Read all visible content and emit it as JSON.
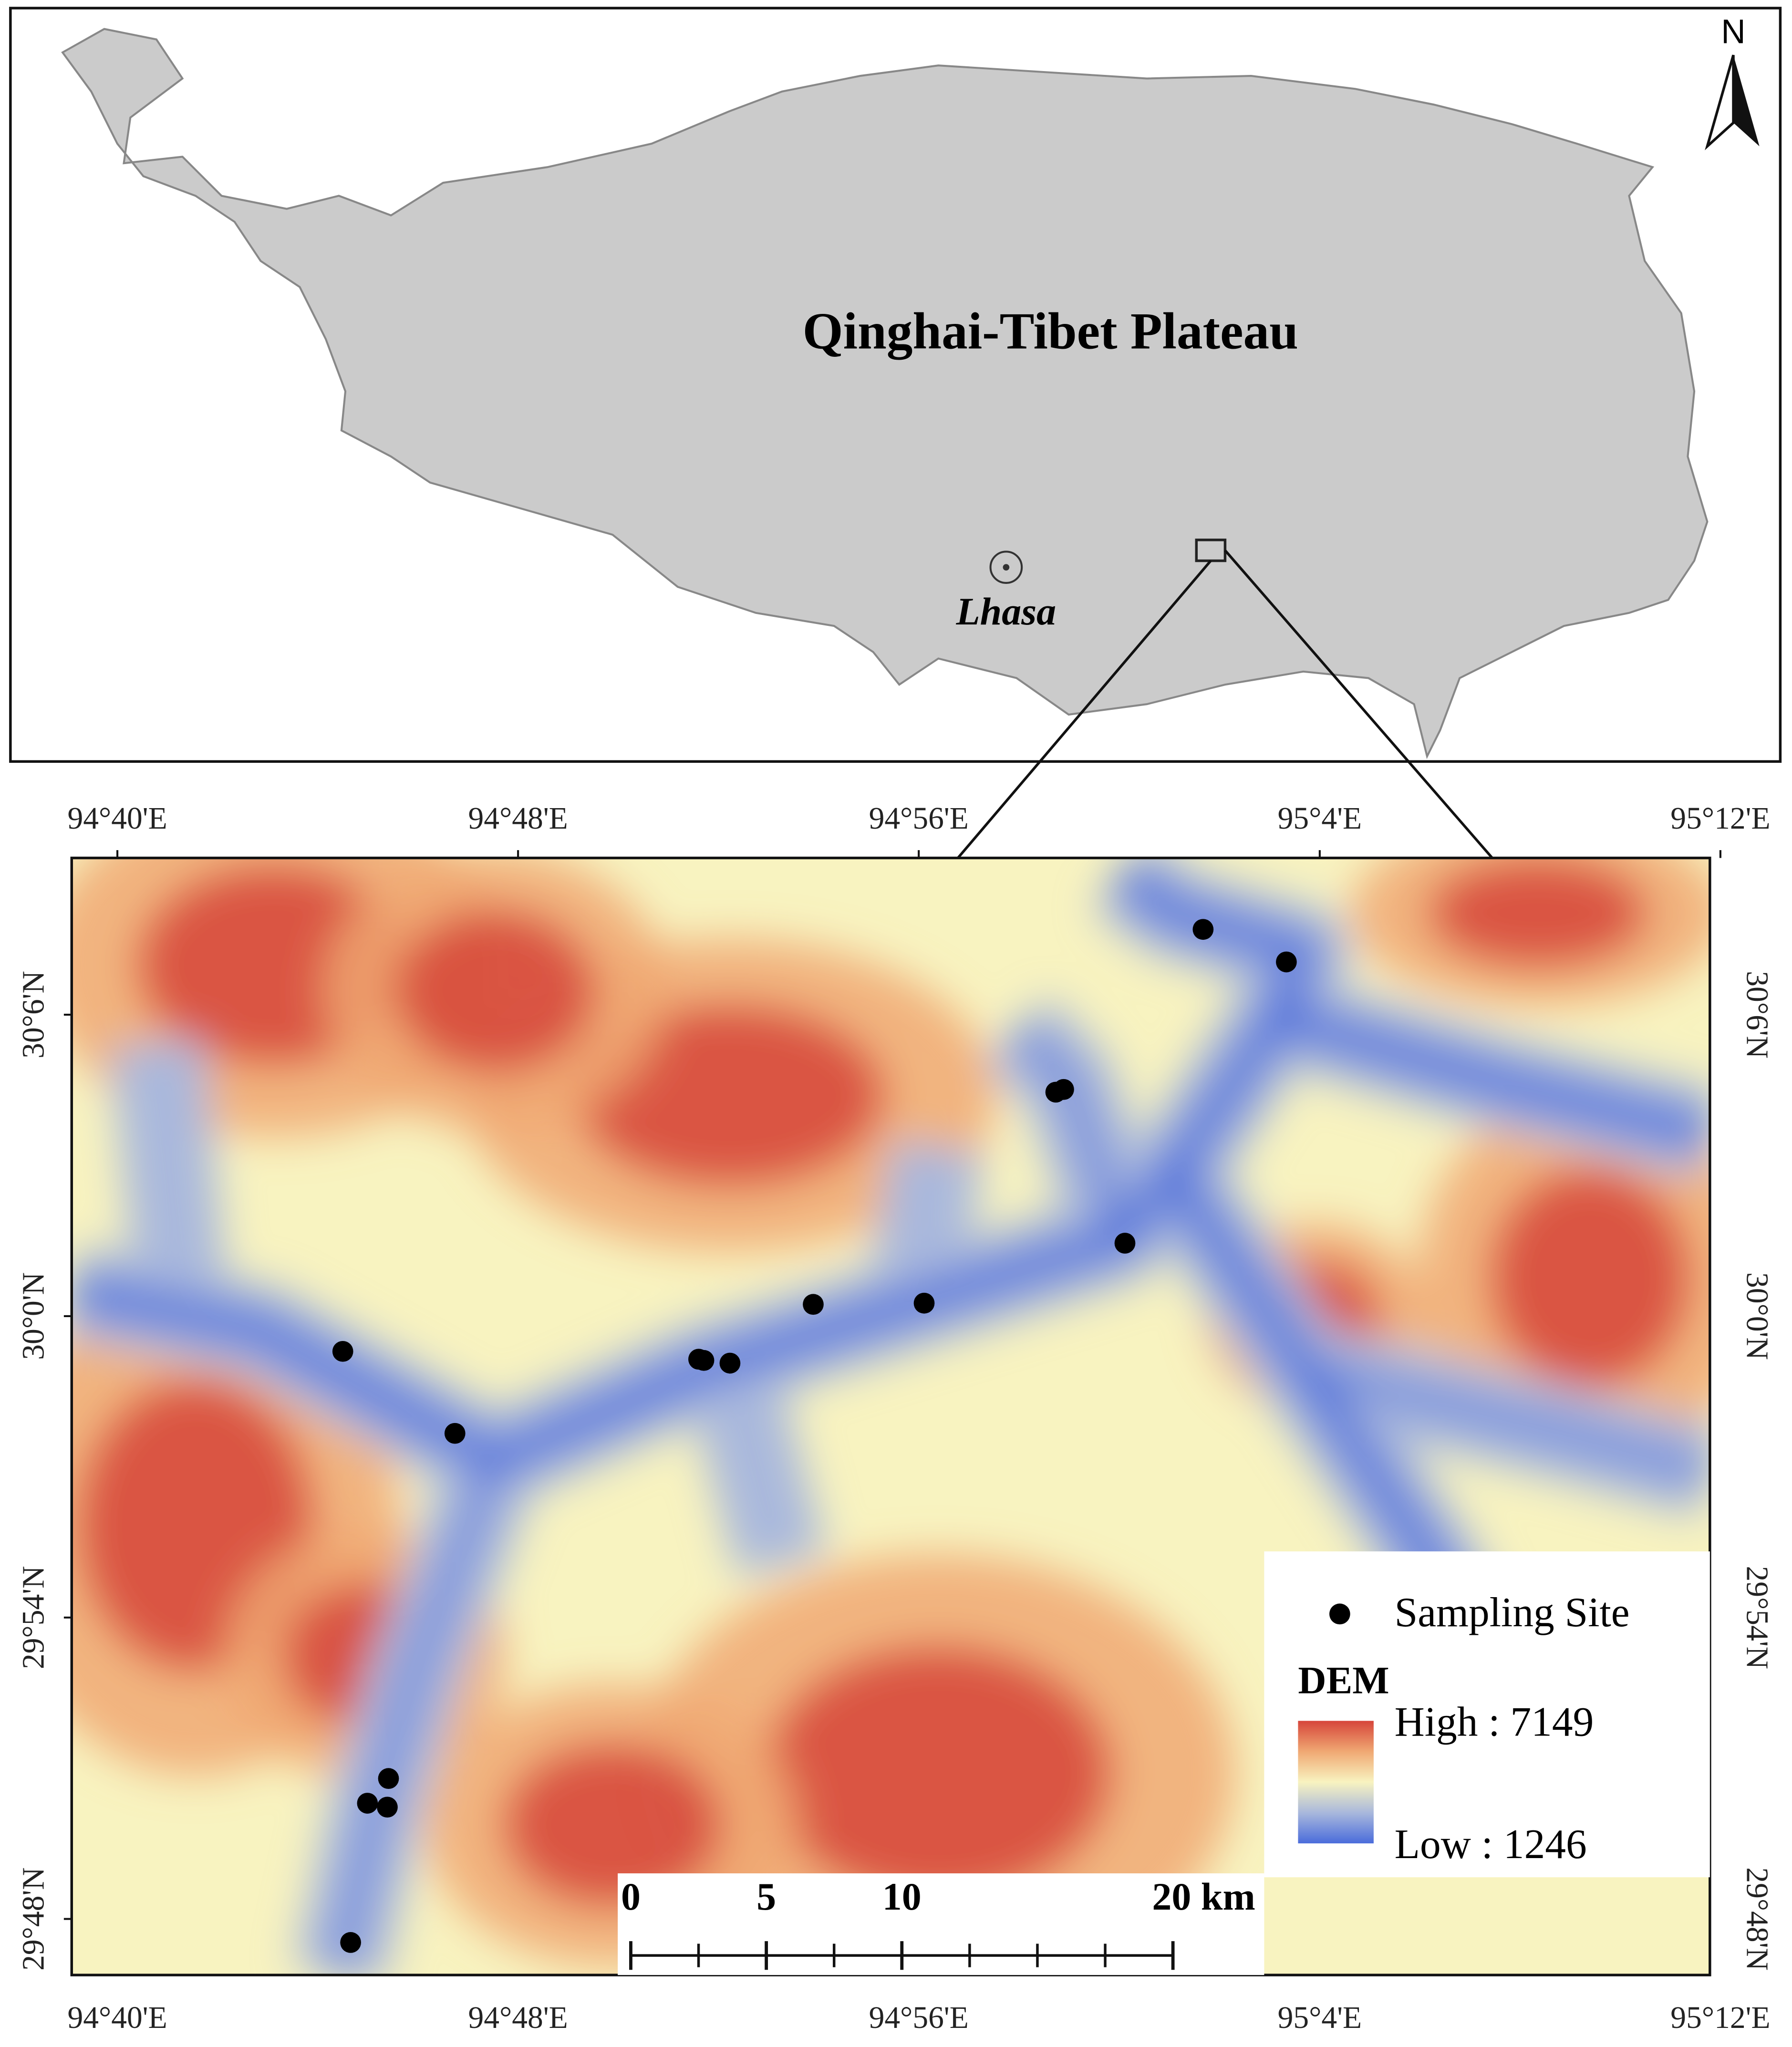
{
  "map": {
    "inset": {
      "title": "Qinghai-Tibet Plateau",
      "city": "Lhasa",
      "north": "N"
    },
    "xlim": [
      94.6515,
      95.1965
    ],
    "ylim": [
      29.7814,
      30.152
    ],
    "xticks": [
      {
        "value": 94.6667,
        "label": "94°40'E"
      },
      {
        "value": 94.8,
        "label": "94°48'E"
      },
      {
        "value": 94.9333,
        "label": "94°56'E"
      },
      {
        "value": 95.0667,
        "label": "95°4'E"
      },
      {
        "value": 95.2,
        "label": "95°12'E"
      }
    ],
    "yticks": [
      {
        "value": 30.1,
        "label": "30°6'N"
      },
      {
        "value": 30.0,
        "label": "30°0'N"
      },
      {
        "value": 29.9,
        "label": "29°54'N"
      },
      {
        "value": 29.8,
        "label": "29°48'N"
      }
    ],
    "sites": {
      "name": "Sampling Site",
      "color": "#000000",
      "lon": [
        95.0279,
        95.0556,
        94.9789,
        94.9815,
        95.0019,
        94.8982,
        94.9351,
        94.7417,
        94.8601,
        94.8618,
        94.8705,
        94.779,
        94.7569,
        94.7499,
        94.7565,
        94.7443
      ],
      "lat": [
        30.1283,
        30.1175,
        30.0743,
        30.0752,
        30.0242,
        30.0039,
        30.0043,
        29.9883,
        29.9857,
        29.9853,
        29.9844,
        29.9611,
        29.8466,
        29.8384,
        29.8371,
        29.7922
      ]
    },
    "dem": {
      "title": "DEM",
      "high": {
        "value": 7149,
        "label": "High : 7149"
      },
      "low": {
        "value": 1246,
        "label": "Low : 1246"
      },
      "colors": [
        "#d6453a",
        "#f0a873",
        "#f8f3c0",
        "#a9b8dc",
        "#4a6cdb"
      ]
    },
    "scale_bar": {
      "ticks": [
        0,
        5,
        10,
        {
          "value": 20,
          "label": "20 km"
        }
      ]
    }
  }
}
